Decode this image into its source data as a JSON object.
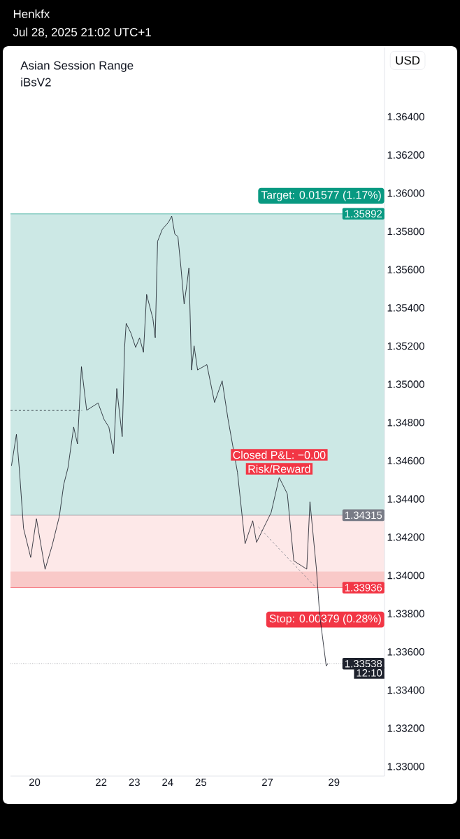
{
  "chart_data": {
    "type": "line",
    "title": "Henkfx",
    "subtitle": "Jul 28, 2025 21:02 UTC+1",
    "ylabel": "USD",
    "xlim": [
      19.275,
      30.519
    ],
    "ylim": [
      1.3295,
      1.36762
    ],
    "xticks": [
      20,
      22,
      23,
      24,
      25,
      27,
      29
    ],
    "yticks": [
      {
        "value": 1.33,
        "label": "1.33000"
      },
      {
        "value": 1.332,
        "label": "1.33200"
      },
      {
        "value": 1.334,
        "label": "1.33400"
      },
      {
        "value": 1.336,
        "label": "1.33600"
      },
      {
        "value": 1.338,
        "label": "1.33800"
      },
      {
        "value": 1.34,
        "label": "1.34000"
      },
      {
        "value": 1.342,
        "label": "1.34200"
      },
      {
        "value": 1.344,
        "label": "1.34400"
      },
      {
        "value": 1.346,
        "label": "1.34600"
      },
      {
        "value": 1.348,
        "label": "1.34800"
      },
      {
        "value": 1.35,
        "label": "1.35000"
      },
      {
        "value": 1.352,
        "label": "1.35200"
      },
      {
        "value": 1.354,
        "label": "1.35400"
      },
      {
        "value": 1.356,
        "label": "1.35600"
      },
      {
        "value": 1.358,
        "label": "1.35800"
      },
      {
        "value": 1.36,
        "label": "1.36000"
      },
      {
        "value": 1.362,
        "label": "1.36200"
      },
      {
        "value": 1.364,
        "label": "1.36400"
      }
    ],
    "marker": "none",
    "series": [
      {
        "color": "#131722",
        "x": [
          19.305,
          19.453,
          19.538,
          19.668,
          19.883,
          20.055,
          20.315,
          20.53,
          20.745,
          20.875,
          21.003,
          21.175,
          21.288,
          21.408,
          21.565,
          21.908,
          22.092,
          22.233,
          22.375,
          22.47,
          22.634,
          22.705,
          22.753,
          22.895,
          23.037,
          23.155,
          23.273,
          23.367,
          23.556,
          23.627,
          23.697,
          23.839,
          24.028,
          24.122,
          24.215,
          24.308,
          24.401,
          24.495,
          24.586,
          24.639,
          24.718,
          24.795,
          24.899,
          25.179,
          25.409,
          25.639,
          25.812,
          26.099,
          26.328,
          26.558,
          26.672,
          27.111,
          27.354,
          27.597,
          27.792,
          28.182,
          28.278,
          28.473,
          28.57,
          28.767,
          28.815
        ],
        "values": [
          1.34574,
          1.34738,
          1.34563,
          1.34246,
          1.34094,
          1.34297,
          1.34032,
          1.34158,
          1.3431,
          1.34475,
          1.34563,
          1.34776,
          1.34688,
          1.35092,
          1.34864,
          1.34902,
          1.34815,
          1.34776,
          1.34638,
          1.34978,
          1.34726,
          1.35193,
          1.35319,
          1.35268,
          1.35193,
          1.35243,
          1.35167,
          1.3547,
          1.35344,
          1.35244,
          1.35748,
          1.35811,
          1.35849,
          1.3588,
          1.35786,
          1.35773,
          1.35609,
          1.3542,
          1.35533,
          1.35609,
          1.35075,
          1.35201,
          1.35075,
          1.35103,
          1.34905,
          1.35018,
          1.34821,
          1.34539,
          1.34166,
          1.34286,
          1.34173,
          1.34329,
          1.34512,
          1.34427,
          1.34076,
          1.34033,
          1.34385,
          1.34033,
          1.33794,
          1.33526,
          1.33538
        ]
      },
      {
        "color": "#131722",
        "line_style": "dashed",
        "x": [
          19.275,
          21.425
        ],
        "values": [
          1.34863,
          1.34863
        ]
      },
      {
        "color": "#787b86",
        "line_style": "dashed",
        "x": [
          26.727,
          28.42
        ],
        "values": [
          1.34254,
          1.33943
        ]
      }
    ],
    "bands": [
      {
        "axis": "y",
        "from": 1.34315,
        "to": 1.35892,
        "color": "#cce8e5",
        "label": "Target: 0.01577 (1.17%)"
      },
      {
        "axis": "y",
        "from": 1.33936,
        "to": 1.34315,
        "color": "#f9c9c8",
        "label": "Stop: 0.00379 (0.28%)"
      },
      {
        "axis": "y",
        "from": 1.3402,
        "to": 1.34314,
        "color": "#fde8e8"
      }
    ],
    "ref_lines": [
      {
        "axis": "y",
        "value": 1.35892,
        "label": "1.35892",
        "color": "#089981"
      },
      {
        "axis": "y",
        "value": 1.34315,
        "label": "1.34315"
      },
      {
        "axis": "y",
        "value": 1.33936,
        "label": "1.33936",
        "color": "#f23645"
      },
      {
        "axis": "y",
        "value": 1.33538,
        "label": "1.33538",
        "color": "#1e222d",
        "line_style": "dotted"
      }
    ],
    "annotations": [
      "Asian Session Range",
      "iBsV2",
      {
        "text": "Closed P&L: −0.00",
        "x": 27.354,
        "y": 1.34512
      },
      {
        "text": "Risk/Reward",
        "x": 27.354,
        "y": 1.34512
      },
      {
        "text": "12:10",
        "y": 1.3349
      }
    ]
  }
}
